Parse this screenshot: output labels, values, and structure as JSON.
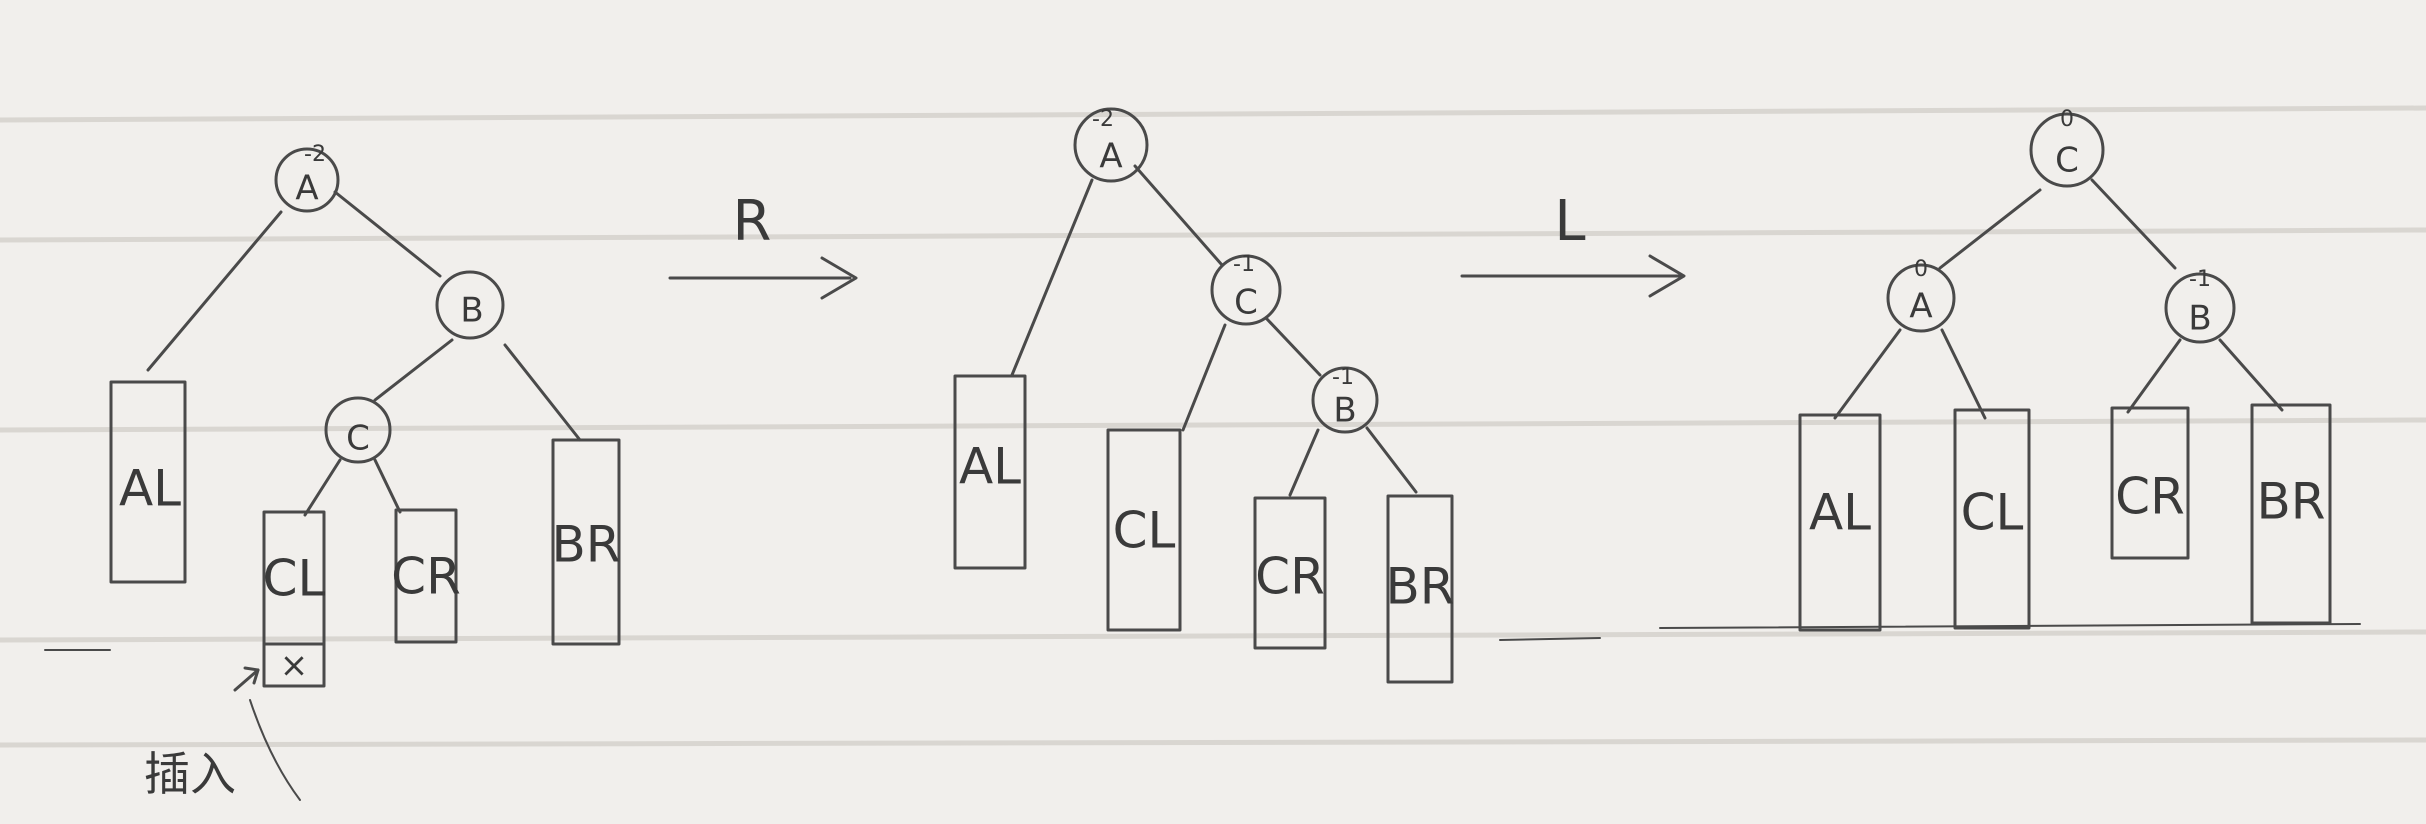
{
  "diagram": {
    "stages": [
      {
        "name": "initial",
        "nodes": [
          {
            "label": "A",
            "balance": "-2"
          },
          {
            "label": "B",
            "balance": ""
          },
          {
            "label": "C",
            "balance": ""
          }
        ],
        "leaves": [
          "AL",
          "CL",
          "CR",
          "BR"
        ],
        "inserted_marker": "×",
        "inserted_note": "插入"
      },
      {
        "name": "after-right-rotation",
        "nodes": [
          {
            "label": "A",
            "balance": "-2"
          },
          {
            "label": "C",
            "balance": "-1"
          },
          {
            "label": "B",
            "balance": "-1"
          }
        ],
        "leaves": [
          "AL",
          "CL",
          "CR",
          "BR"
        ]
      },
      {
        "name": "after-left-rotation",
        "nodes": [
          {
            "label": "C",
            "balance": "0"
          },
          {
            "label": "A",
            "balance": "0"
          },
          {
            "label": "B",
            "balance": "-1"
          }
        ],
        "leaves": [
          "AL",
          "CL",
          "CR",
          "BR"
        ]
      }
    ],
    "arrows": [
      {
        "label": "R"
      },
      {
        "label": "L"
      }
    ]
  }
}
